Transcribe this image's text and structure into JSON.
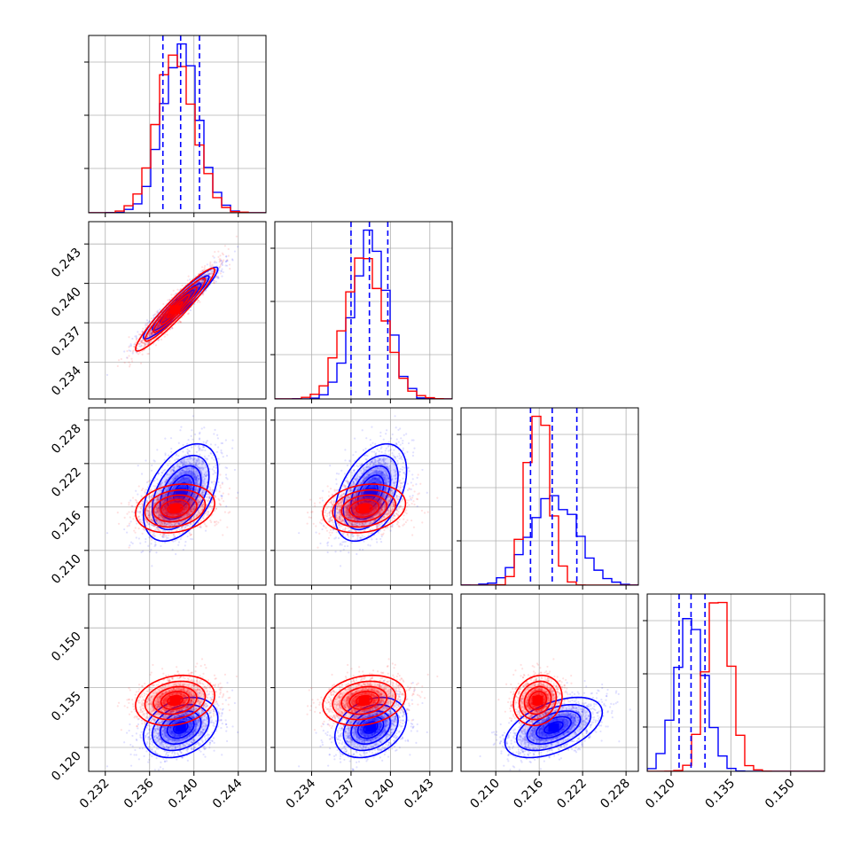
{
  "chart_data": {
    "type": "corner",
    "colors": {
      "series_a": "#0000ff",
      "series_b": "#ff0000"
    },
    "grid": true,
    "parameters": [
      {
        "ticks": [
          0.232,
          0.236,
          0.24,
          0.244
        ],
        "tick_labels": [
          "0.232",
          "0.236",
          "0.240",
          "0.244"
        ],
        "range": [
          0.2305,
          0.2465
        ]
      },
      {
        "ticks": [
          0.234,
          0.237,
          0.24,
          0.243
        ],
        "tick_labels": [
          "0.234",
          "0.237",
          "0.240",
          "0.243"
        ],
        "range": [
          0.2312,
          0.2447
        ]
      },
      {
        "ticks": [
          0.21,
          0.216,
          0.222,
          0.228
        ],
        "tick_labels": [
          "0.210",
          "0.216",
          "0.222",
          "0.228"
        ],
        "range": [
          0.2052,
          0.2297
        ]
      },
      {
        "ticks": [
          0.12,
          0.135,
          0.15
        ],
        "tick_labels": [
          "0.120",
          "0.135",
          "0.150"
        ],
        "range": [
          0.114,
          0.1585
        ]
      }
    ],
    "series": [
      {
        "color": "#0000ff",
        "mean": [
          0.2388,
          0.2385,
          0.218,
          0.125
        ],
        "sigma": [
          0.0016,
          0.0013,
          0.0032,
          0.0036
        ],
        "quantiles": [
          [
            0.2372,
            0.2388,
            0.2405
          ],
          [
            0.237,
            0.2384,
            0.2398
          ],
          [
            0.2148,
            0.2178,
            0.2212
          ],
          [
            0.122,
            0.125,
            0.1285
          ]
        ],
        "correlation": [
          [
            1.0,
            0.95,
            0.45,
            0.3
          ],
          [
            0.95,
            1.0,
            0.45,
            0.3
          ],
          [
            0.45,
            0.45,
            1.0,
            0.5
          ],
          [
            0.3,
            0.3,
            0.5,
            1.0
          ]
        ]
      },
      {
        "color": "#ff0000",
        "mean": [
          0.2383,
          0.238,
          0.2158,
          0.1318
        ],
        "sigma": [
          0.0017,
          0.0015,
          0.0016,
          0.003
        ],
        "correlation": [
          [
            1.0,
            0.95,
            0.2,
            0.2
          ],
          [
            0.95,
            1.0,
            0.2,
            0.2
          ],
          [
            0.2,
            0.2,
            1.0,
            0.15
          ],
          [
            0.2,
            0.2,
            0.15,
            1.0
          ]
        ]
      }
    ]
  }
}
